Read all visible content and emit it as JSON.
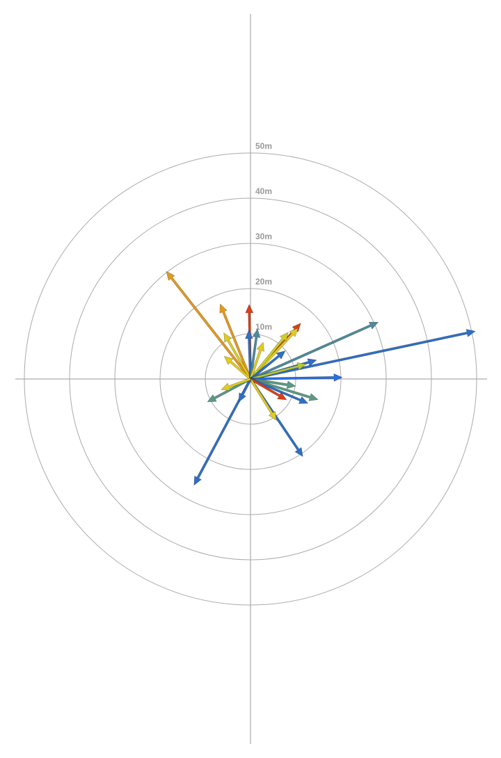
{
  "chart_data": {
    "type": "vector",
    "rlim": [
      0,
      52
    ],
    "rticks": [
      {
        "value": 10,
        "label": "10m"
      },
      {
        "value": 20,
        "label": "20m"
      },
      {
        "value": 30,
        "label": "30m"
      },
      {
        "value": 40,
        "label": "40m"
      },
      {
        "value": 50,
        "label": "50m"
      }
    ],
    "grid": true,
    "directions": [
      322,
      338,
      359,
      330,
      311,
      358,
      8,
      42,
      43,
      39,
      19,
      51,
      66,
      78,
      74,
      75,
      89,
      99,
      107,
      113,
      120,
      146,
      148,
      208,
      207,
      242,
      250
    ],
    "magnitudes": [
      30.2,
      17.9,
      16.5,
      11.8,
      7.7,
      10.8,
      11.2,
      16.6,
      15.4,
      13.3,
      8.6,
      9.9,
      30.9,
      50.8,
      15.2,
      12.7,
      20.3,
      10.1,
      15.6,
      13.8,
      9.2,
      20.7,
      10.8,
      26.6,
      5.7,
      10.8,
      6.9
    ],
    "colors": [
      "#e39a1c",
      "#e39a1c",
      "#d8401a",
      "#e0cc22",
      "#e0cc22",
      "#2f6fc4",
      "#4d8a9c",
      "#d8401a",
      "#e0cc22",
      "#d2cc2a",
      "#e0cc22",
      "#2f6fc4",
      "#4d8a9c",
      "#2f6fc4",
      "#2f6fc4",
      "#b9c834",
      "#2a6ee0",
      "#5a9a84",
      "#5a9a84",
      "#2f6fc4",
      "#d8401a",
      "#2f6fc4",
      "#e0cc22",
      "#2f6fc4",
      "#2f6fc4",
      "#5a9a84",
      "#e0cc22"
    ]
  }
}
